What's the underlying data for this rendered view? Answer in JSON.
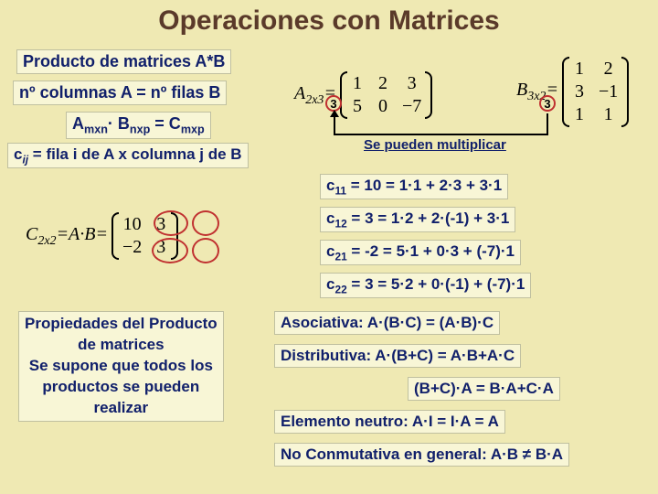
{
  "title": "Operaciones con Matrices",
  "left": {
    "l1": "Producto de matrices A*B",
    "l2": "nº columnas A = nº filas B",
    "l3": "A<span class='sub'>mxn</span>· B<span class='sub'>nxp</span> = C<span class='sub'>mxp</span>",
    "l4": "c<span class='sub' style='font-style:italic'>ij</span> = fila i de A x columna j de B"
  },
  "tr": {
    "A_lbl": "A<span class='sub'>2x3</span>=",
    "A": [
      [
        "1",
        "2",
        "3"
      ],
      [
        "5",
        "0",
        "−7"
      ]
    ],
    "B_lbl": "B<span class='sub'>3x2</span>=",
    "B": [
      [
        "1",
        "2"
      ],
      [
        "3",
        "−1"
      ],
      [
        "1",
        "1"
      ]
    ],
    "circleA": "3",
    "circleB": "3",
    "note": "Se pueden multiplicar"
  },
  "Cmat": {
    "lbl": "C<span class='sub'>2x2</span>=A·B=",
    "vals": [
      [
        "10",
        "3"
      ],
      [
        "−2",
        "3"
      ]
    ]
  },
  "calc": {
    "c11": "c<span class='sub'>11</span> = 10 = 1·1 + 2·3 + 3·1",
    "c12": "c<span class='sub'>12</span> = 3 = 1·2 + 2·(-1) + 3·1",
    "c21": "c<span class='sub'>21</span> = -2 = 5·1 + 0·3 + (-7)·1",
    "c22": "c<span class='sub'>22</span> = 3 = 5·2 + 0·(-1) + (-7)·1"
  },
  "props": {
    "heading": "Propiedades del Producto<br>de matrices<br>Se supone que todos los<br>productos se pueden<br>realizar",
    "p1": "Asociativa: A·(B·C) = (A·B)·C",
    "p2": "Distributiva: A·(B+C) = A·B+A·C",
    "p3": "(B+C)·A = B·A+C·A",
    "p4": "Elemento neutro: A·I = I·A = A",
    "p5": "No Conmutativa en general: A·B ≠ B·A"
  },
  "style": {
    "title_fontsize": 30,
    "body_fontsize": 18,
    "calc_fontsize": 17,
    "prop_fontsize": 17,
    "bg": "#efe9b3",
    "box_bg": "#f8f6d6",
    "text_color": "#11206b",
    "title_color": "#5a3a2a",
    "circle_color": "#c03030"
  }
}
